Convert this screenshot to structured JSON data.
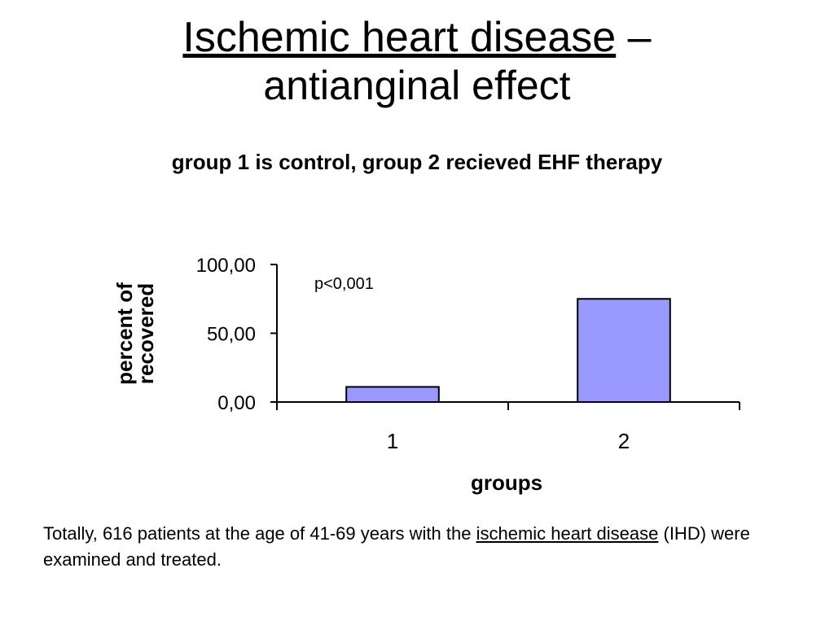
{
  "slide": {
    "title_link": "Ischemic heart disease",
    "title_dash": " –",
    "title_line2": "antianginal effect"
  },
  "footnote": {
    "text_before": "Totally, 616 patients at the age of 41-69 years with the ",
    "link": "ischemic heart disease",
    "text_after": " (IHD) were examined and treated."
  },
  "chart_data": {
    "type": "bar",
    "title": "group 1 is control, group 2 recieved EHF therapy",
    "xlabel": "groups",
    "ylabel": "percent of recovered",
    "categories": [
      "1",
      "2"
    ],
    "values": [
      11,
      75
    ],
    "ylim": [
      0,
      100
    ],
    "yticks": [
      0,
      50,
      100
    ],
    "ytick_labels": [
      "0,00",
      "50,00",
      "100,00"
    ],
    "annotation": "p<0,001",
    "bar_color": "#9999ff",
    "grid": false,
    "legend": "none"
  }
}
